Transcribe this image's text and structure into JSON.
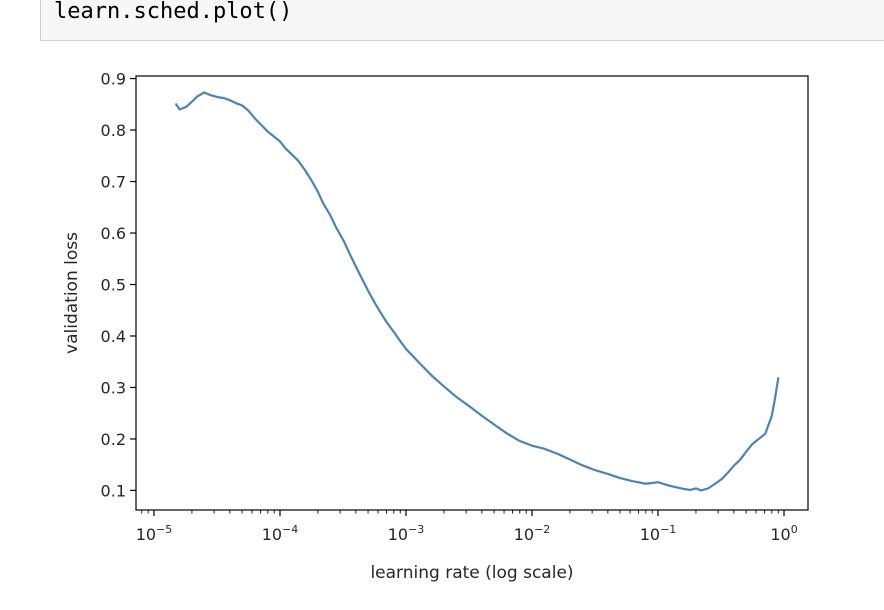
{
  "code_cell": {
    "source": "learn.sched.plot()"
  },
  "chart_data": {
    "type": "line",
    "xscale": "log",
    "xlabel": "learning rate (log scale)",
    "ylabel": "validation loss",
    "xlim": [
      7.2e-06,
      1.55
    ],
    "ylim": [
      0.062,
      0.905
    ],
    "xticks": [
      1e-05,
      0.0001,
      0.001,
      0.01,
      0.1,
      1
    ],
    "xtick_labels": [
      {
        "base": "10",
        "exp": "−5"
      },
      {
        "base": "10",
        "exp": "−4"
      },
      {
        "base": "10",
        "exp": "−3"
      },
      {
        "base": "10",
        "exp": "−2"
      },
      {
        "base": "10",
        "exp": "−1"
      },
      {
        "base": "10",
        "exp": "0"
      }
    ],
    "yticks": [
      0.1,
      0.2,
      0.3,
      0.4,
      0.5,
      0.6,
      0.7,
      0.8,
      0.9
    ],
    "ytick_labels": [
      "0.1",
      "0.2",
      "0.3",
      "0.4",
      "0.5",
      "0.6",
      "0.7",
      "0.8",
      "0.9"
    ],
    "grid": false,
    "line_color": "#4c82b8",
    "series": [
      {
        "x": [
          1.5e-05,
          1.6e-05,
          1.8e-05,
          2e-05,
          2.2e-05,
          2.5e-05,
          2.8e-05,
          3.2e-05,
          3.6e-05,
          4e-05,
          4.5e-05,
          5e-05,
          5.6e-05,
          6.3e-05,
          7.1e-05,
          8e-05,
          9e-05,
          0.0001,
          0.00011,
          0.000125,
          0.00014,
          0.00016,
          0.00018,
          0.0002,
          0.00022,
          0.00025,
          0.00028,
          0.00032,
          0.00036,
          0.0004,
          0.00045,
          0.0005,
          0.00056,
          0.00063,
          0.00071,
          0.0008,
          0.0009,
          0.001,
          0.00125,
          0.0016,
          0.002,
          0.0025,
          0.0032,
          0.004,
          0.005,
          0.0063,
          0.008,
          0.01,
          0.0125,
          0.016,
          0.02,
          0.025,
          0.032,
          0.04,
          0.05,
          0.063,
          0.08,
          0.1,
          0.12,
          0.14,
          0.16,
          0.18,
          0.2,
          0.22,
          0.25,
          0.28,
          0.32,
          0.36,
          0.4,
          0.45,
          0.5,
          0.56,
          0.63,
          0.71,
          0.8,
          0.85,
          0.9
        ],
        "y": [
          0.85,
          0.84,
          0.845,
          0.855,
          0.865,
          0.873,
          0.868,
          0.864,
          0.862,
          0.858,
          0.852,
          0.848,
          0.838,
          0.823,
          0.81,
          0.797,
          0.787,
          0.778,
          0.765,
          0.752,
          0.74,
          0.72,
          0.7,
          0.68,
          0.658,
          0.635,
          0.61,
          0.585,
          0.558,
          0.535,
          0.51,
          0.488,
          0.466,
          0.445,
          0.425,
          0.408,
          0.39,
          0.375,
          0.35,
          0.323,
          0.302,
          0.282,
          0.263,
          0.245,
          0.228,
          0.211,
          0.196,
          0.187,
          0.181,
          0.171,
          0.16,
          0.149,
          0.139,
          0.132,
          0.124,
          0.118,
          0.113,
          0.116,
          0.11,
          0.106,
          0.103,
          0.101,
          0.104,
          0.1,
          0.104,
          0.112,
          0.122,
          0.135,
          0.148,
          0.16,
          0.175,
          0.19,
          0.2,
          0.21,
          0.245,
          0.28,
          0.318
        ]
      }
    ]
  }
}
